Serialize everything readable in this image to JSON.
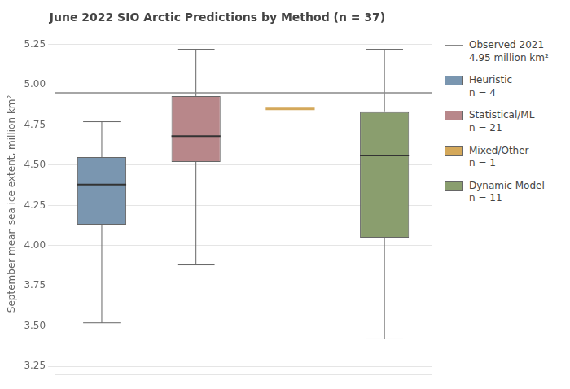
{
  "chart_data": {
    "type": "box",
    "title": "June 2022 SIO Arctic Predictions by Method (n = 37)",
    "ylabel": "September mean sea ice extent, million km²",
    "series": [
      {
        "name": "Observed 2021\n4.95 million km²",
        "type": "hline",
        "color": "#888888",
        "values": [
          4.95
        ]
      },
      {
        "name": "Heuristic\nn = 4",
        "type": "box",
        "color": "#7a96b0",
        "whisker_low": 3.52,
        "q1": 4.13,
        "median": 4.38,
        "q3": 4.55,
        "whisker_high": 4.77
      },
      {
        "name": "Statistical/ML\nn = 21",
        "type": "box",
        "color": "#b8878a",
        "whisker_low": 3.88,
        "q1": 4.52,
        "median": 4.68,
        "q3": 4.93,
        "whisker_high": 5.22
      },
      {
        "name": "Mixed/Other\nn = 1",
        "type": "box",
        "color": "#d4a85a",
        "values": [
          4.85
        ]
      },
      {
        "name": "Dynamic Model\nn = 11",
        "type": "box",
        "color": "#8a9e6e",
        "whisker_low": 3.42,
        "q1": 4.05,
        "median": 4.56,
        "q3": 4.83,
        "whisker_high": 5.22
      }
    ],
    "ylim": [
      3.2,
      5.32
    ],
    "yticks": [
      3.25,
      {
        "value": 3.5,
        "label": "3.50"
      },
      3.75,
      {
        "value": 4,
        "label": "4.00"
      },
      4.25,
      {
        "value": 4.5,
        "label": "4.50"
      },
      4.75,
      {
        "value": 5,
        "label": "5.00"
      },
      5.25
    ],
    "grid": true,
    "legend": "right",
    "tick_labels": "y"
  }
}
